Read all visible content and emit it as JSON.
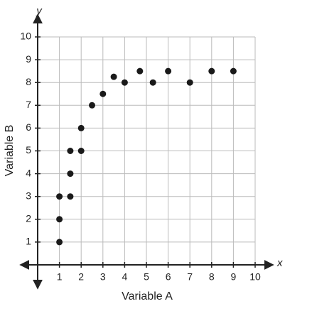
{
  "chart_data": {
    "type": "scatter",
    "x_label": "Variable A",
    "y_label": "Variable B",
    "x_axis_name": "x",
    "y_axis_name": "y",
    "x": [
      1,
      1,
      1,
      1.5,
      1.5,
      1.5,
      2,
      2,
      2.5,
      3,
      3.5,
      4,
      4.7,
      5.3,
      6,
      7,
      8,
      9
    ],
    "values": [
      1,
      2,
      3,
      3,
      4,
      5,
      5,
      6,
      7,
      7.5,
      8.25,
      8,
      8.5,
      8,
      8.5,
      8,
      8.5,
      8.5
    ],
    "color": "#1a1a1a",
    "xlim": [
      0,
      10
    ],
    "ylim": [
      0,
      10
    ],
    "xticks": [
      1,
      2,
      3,
      4,
      5,
      6,
      7,
      8,
      9,
      10
    ],
    "yticks": [
      1,
      2,
      3,
      4,
      5,
      6,
      7,
      8,
      9,
      10
    ],
    "grid": true
  }
}
